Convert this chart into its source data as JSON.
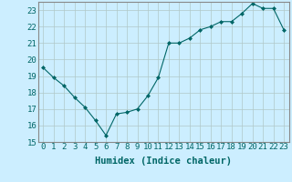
{
  "x": [
    0,
    1,
    2,
    3,
    4,
    5,
    6,
    7,
    8,
    9,
    10,
    11,
    12,
    13,
    14,
    15,
    16,
    17,
    18,
    19,
    20,
    21,
    22,
    23
  ],
  "y": [
    19.5,
    18.9,
    18.4,
    17.7,
    17.1,
    16.3,
    15.4,
    16.7,
    16.8,
    17.0,
    17.8,
    18.9,
    21.0,
    21.0,
    21.3,
    21.8,
    22.0,
    22.3,
    22.3,
    22.8,
    23.4,
    23.1,
    23.1,
    21.8
  ],
  "xlabel": "Humidex (Indice chaleur)",
  "ylabel": "",
  "ylim": [
    15,
    23.5
  ],
  "yticks": [
    15,
    16,
    17,
    18,
    19,
    20,
    21,
    22,
    23
  ],
  "xticks": [
    0,
    1,
    2,
    3,
    4,
    5,
    6,
    7,
    8,
    9,
    10,
    11,
    12,
    13,
    14,
    15,
    16,
    17,
    18,
    19,
    20,
    21,
    22,
    23
  ],
  "line_color": "#006666",
  "marker_color": "#006666",
  "bg_color": "#cceeff",
  "grid_color": "#b0c8c8",
  "text_color": "#006666",
  "font_size": 6.5
}
